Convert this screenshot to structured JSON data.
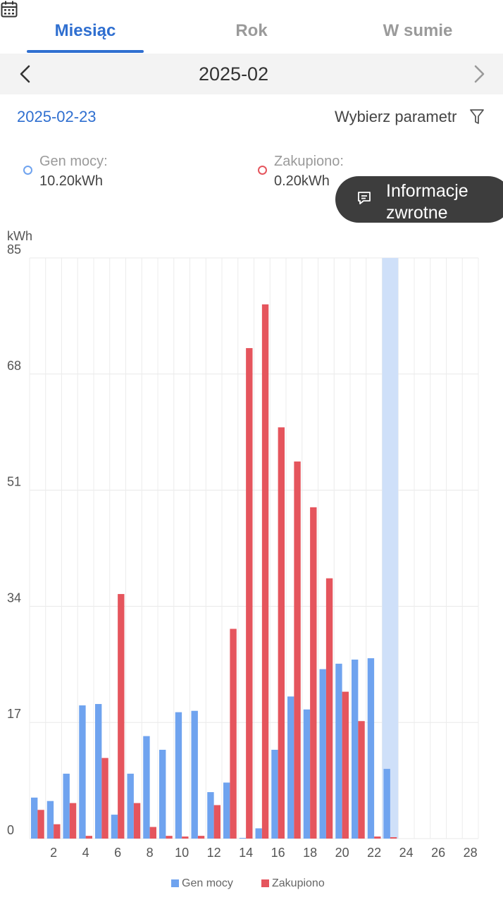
{
  "tabs": [
    {
      "label": "Miesiąc",
      "active": true
    },
    {
      "label": "Rok",
      "active": false
    },
    {
      "label": "W sumie",
      "active": false
    }
  ],
  "period": {
    "title": "2025-02"
  },
  "selected_date": "2025-02-23",
  "parameter_label": "Wybierz parametr",
  "stats": {
    "gen": {
      "label": "Gen mocy:",
      "value": "10.20kWh",
      "color": "#6fa3ef"
    },
    "bought": {
      "label": "Zakupiono:",
      "value": "0.20kWh",
      "color": "#e5555d"
    }
  },
  "feedback": {
    "line1": "Informacje",
    "line2": "zwrotne"
  },
  "chart_data": {
    "type": "bar",
    "ylabel": "kWh",
    "ylim": [
      0,
      85
    ],
    "yticks": [
      "0",
      "17",
      "34",
      "51",
      "68",
      "85"
    ],
    "xticks": [
      "2",
      "4",
      "6",
      "8",
      "10",
      "12",
      "14",
      "16",
      "18",
      "20",
      "22",
      "24",
      "26",
      "28"
    ],
    "categories": [
      1,
      2,
      3,
      4,
      5,
      6,
      7,
      8,
      9,
      10,
      11,
      12,
      13,
      14,
      15,
      16,
      17,
      18,
      19,
      20,
      21,
      22,
      23,
      24,
      25,
      26,
      27,
      28
    ],
    "highlighted_category": 23,
    "grid": true,
    "legend": "bottom",
    "series": [
      {
        "name": "Gen mocy",
        "color": "#6fa3ef",
        "values": [
          6.0,
          5.5,
          9.5,
          19.5,
          19.7,
          3.5,
          9.5,
          15.0,
          13.0,
          18.5,
          18.7,
          6.8,
          8.2,
          0.1,
          1.5,
          13.0,
          20.8,
          18.9,
          24.8,
          25.6,
          26.2,
          26.4,
          10.2,
          0,
          0,
          0,
          0,
          0
        ]
      },
      {
        "name": "Zakupiono",
        "color": "#e5555d",
        "values": [
          4.2,
          2.1,
          5.2,
          0.4,
          11.8,
          35.8,
          5.2,
          1.7,
          0.4,
          0.3,
          0.4,
          4.9,
          30.7,
          71.8,
          78.2,
          60.2,
          55.2,
          48.5,
          38.1,
          21.5,
          17.2,
          0.3,
          0.2,
          0,
          0,
          0,
          0,
          0
        ]
      }
    ]
  }
}
